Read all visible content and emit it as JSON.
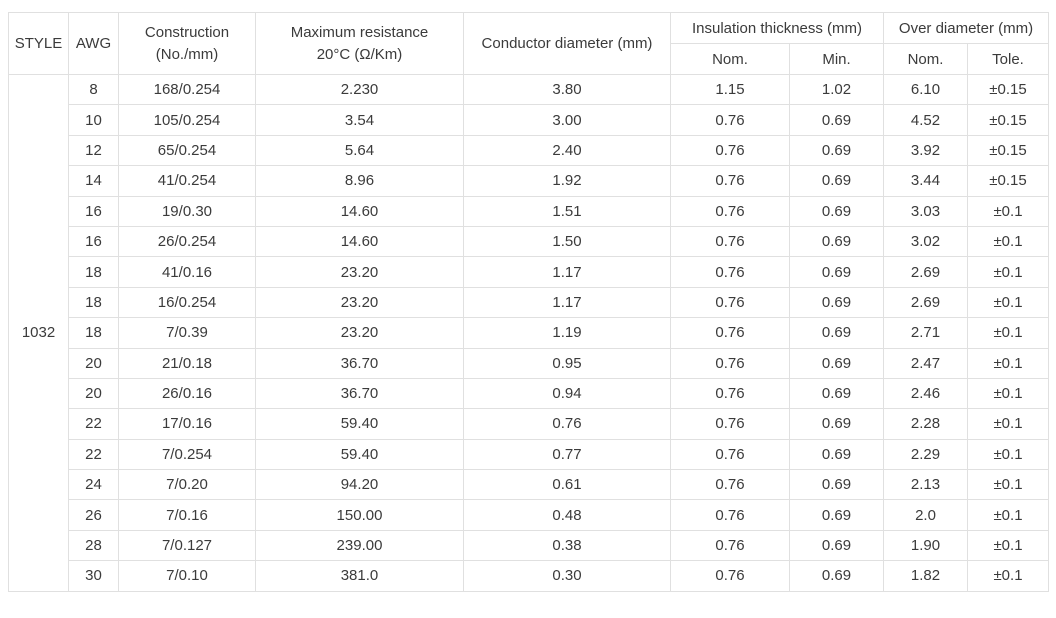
{
  "colors": {
    "background": "#ffffff",
    "border": "#e0e0e0",
    "text": "#3b3b3b"
  },
  "table": {
    "style_value": "1032",
    "headers": {
      "style": "STYLE",
      "awg": "AWG",
      "construction_line1": "Construction",
      "construction_line2": "(No./mm)",
      "max_resistance_line1": "Maximum resistance",
      "max_resistance_line2": "20°C (Ω/Km)",
      "conductor_diameter": "Conductor diameter (mm)",
      "insulation_thickness": "Insulation thickness (mm)",
      "insulation_nom": "Nom.",
      "insulation_min": "Min.",
      "over_diameter": "Over diameter (mm)",
      "over_nom": "Nom.",
      "over_tole": "Tole."
    },
    "rows": [
      {
        "awg": "8",
        "construction": "168/0.254",
        "max_resistance": "2.230",
        "conductor_diameter": "3.80",
        "insulation_nom": "1.15",
        "insulation_min": "1.02",
        "over_nom": "6.10",
        "over_tole": "±0.15"
      },
      {
        "awg": "10",
        "construction": "105/0.254",
        "max_resistance": "3.54",
        "conductor_diameter": "3.00",
        "insulation_nom": "0.76",
        "insulation_min": "0.69",
        "over_nom": "4.52",
        "over_tole": "±0.15"
      },
      {
        "awg": "12",
        "construction": "65/0.254",
        "max_resistance": "5.64",
        "conductor_diameter": "2.40",
        "insulation_nom": "0.76",
        "insulation_min": "0.69",
        "over_nom": "3.92",
        "over_tole": "±0.15"
      },
      {
        "awg": "14",
        "construction": "41/0.254",
        "max_resistance": "8.96",
        "conductor_diameter": "1.92",
        "insulation_nom": "0.76",
        "insulation_min": "0.69",
        "over_nom": "3.44",
        "over_tole": "±0.15"
      },
      {
        "awg": "16",
        "construction": "19/0.30",
        "max_resistance": "14.60",
        "conductor_diameter": "1.51",
        "insulation_nom": "0.76",
        "insulation_min": "0.69",
        "over_nom": "3.03",
        "over_tole": "±0.1"
      },
      {
        "awg": "16",
        "construction": "26/0.254",
        "max_resistance": "14.60",
        "conductor_diameter": "1.50",
        "insulation_nom": "0.76",
        "insulation_min": "0.69",
        "over_nom": "3.02",
        "over_tole": "±0.1"
      },
      {
        "awg": "18",
        "construction": "41/0.16",
        "max_resistance": "23.20",
        "conductor_diameter": "1.17",
        "insulation_nom": "0.76",
        "insulation_min": "0.69",
        "over_nom": "2.69",
        "over_tole": "±0.1"
      },
      {
        "awg": "18",
        "construction": "16/0.254",
        "max_resistance": "23.20",
        "conductor_diameter": "1.17",
        "insulation_nom": "0.76",
        "insulation_min": "0.69",
        "over_nom": "2.69",
        "over_tole": "±0.1"
      },
      {
        "awg": "18",
        "construction": "7/0.39",
        "max_resistance": "23.20",
        "conductor_diameter": "1.19",
        "insulation_nom": "0.76",
        "insulation_min": "0.69",
        "over_nom": "2.71",
        "over_tole": "±0.1"
      },
      {
        "awg": "20",
        "construction": "21/0.18",
        "max_resistance": "36.70",
        "conductor_diameter": "0.95",
        "insulation_nom": "0.76",
        "insulation_min": "0.69",
        "over_nom": "2.47",
        "over_tole": "±0.1"
      },
      {
        "awg": "20",
        "construction": "26/0.16",
        "max_resistance": "36.70",
        "conductor_diameter": "0.94",
        "insulation_nom": "0.76",
        "insulation_min": "0.69",
        "over_nom": "2.46",
        "over_tole": "±0.1"
      },
      {
        "awg": "22",
        "construction": "17/0.16",
        "max_resistance": "59.40",
        "conductor_diameter": "0.76",
        "insulation_nom": "0.76",
        "insulation_min": "0.69",
        "over_nom": "2.28",
        "over_tole": "±0.1"
      },
      {
        "awg": "22",
        "construction": "7/0.254",
        "max_resistance": "59.40",
        "conductor_diameter": "0.77",
        "insulation_nom": "0.76",
        "insulation_min": "0.69",
        "over_nom": "2.29",
        "over_tole": "±0.1"
      },
      {
        "awg": "24",
        "construction": "7/0.20",
        "max_resistance": "94.20",
        "conductor_diameter": "0.61",
        "insulation_nom": "0.76",
        "insulation_min": "0.69",
        "over_nom": "2.13",
        "over_tole": "±0.1"
      },
      {
        "awg": "26",
        "construction": "7/0.16",
        "max_resistance": "150.00",
        "conductor_diameter": "0.48",
        "insulation_nom": "0.76",
        "insulation_min": "0.69",
        "over_nom": "2.0",
        "over_tole": "±0.1"
      },
      {
        "awg": "28",
        "construction": "7/0.127",
        "max_resistance": "239.00",
        "conductor_diameter": "0.38",
        "insulation_nom": "0.76",
        "insulation_min": "0.69",
        "over_nom": "1.90",
        "over_tole": "±0.1"
      },
      {
        "awg": "30",
        "construction": "7/0.10",
        "max_resistance": "381.0",
        "conductor_diameter": "0.30",
        "insulation_nom": "0.76",
        "insulation_min": "0.69",
        "over_nom": "1.82",
        "over_tole": "±0.1"
      }
    ]
  }
}
